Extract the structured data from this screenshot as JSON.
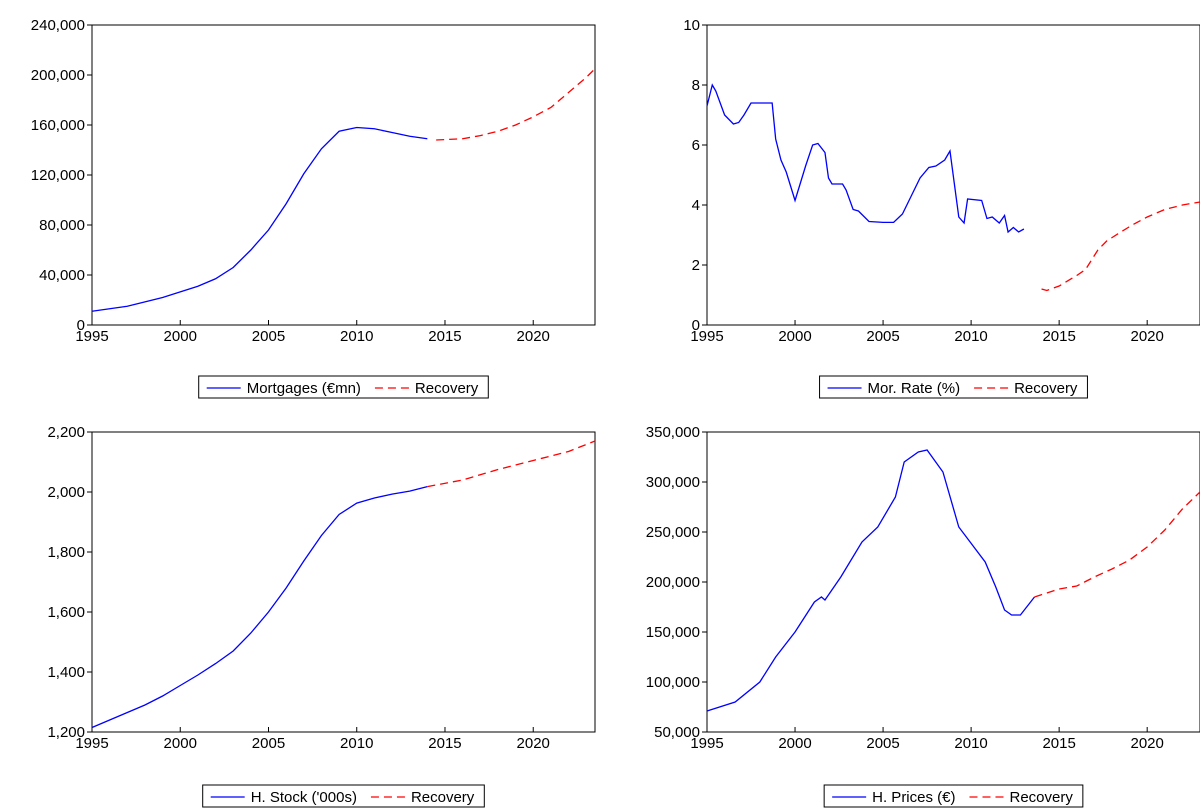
{
  "chart_data": [
    {
      "type": "line",
      "xlim": [
        1995,
        2023.5
      ],
      "xticks": [
        1995,
        2000,
        2005,
        2010,
        2015,
        2020
      ],
      "ylim": [
        0,
        240000
      ],
      "yticks": [
        0,
        {
          "value": 40000,
          "label": "40,000"
        },
        {
          "value": 80000,
          "label": "80,000"
        },
        {
          "value": 120000,
          "label": "120,000"
        },
        {
          "value": 160000,
          "label": "160,000"
        },
        {
          "value": 200000,
          "label": "200,000"
        },
        {
          "value": 240000,
          "label": "240,000"
        }
      ],
      "legend": "bottom",
      "series": [
        {
          "name": "Mortgages (€mn)",
          "color": "#0000ff",
          "style": "solid",
          "x": [
            1995,
            1996,
            1997,
            1998,
            1999,
            2000,
            2001,
            2002,
            2003,
            2004,
            2005,
            2006,
            2007,
            2008,
            2009,
            2010,
            2011,
            2012,
            2013,
            2014
          ],
          "values": [
            11000,
            13000,
            15000,
            18500,
            22000,
            26500,
            31000,
            37000,
            46000,
            60000,
            76000,
            97000,
            121000,
            141000,
            155000,
            158000,
            157000,
            154000,
            151000,
            149000
          ]
        },
        {
          "name": "Recovery",
          "color": "#ff0000",
          "style": "dashed",
          "x": [
            2014.5,
            2016,
            2017,
            2018,
            2019,
            2020,
            2021,
            2022,
            2023,
            2023.5
          ],
          "values": [
            148000,
            149000,
            151500,
            155000,
            160000,
            166500,
            174000,
            186000,
            198000,
            205000
          ]
        }
      ]
    },
    {
      "type": "line",
      "xlim": [
        1995,
        2023
      ],
      "xticks": [
        1995,
        2000,
        2005,
        2010,
        2015,
        2020
      ],
      "ylim": [
        0,
        10
      ],
      "yticks": [
        0,
        2,
        4,
        6,
        8,
        10
      ],
      "legend": "bottom",
      "series": [
        {
          "name": "Mor. Rate (%)",
          "color": "#0000ff",
          "style": "solid",
          "x": [
            1995,
            1995.3,
            1995.5,
            1996,
            1996.5,
            1996.8,
            1997.1,
            1997.5,
            1998.7,
            1998.9,
            1999.2,
            1999.5,
            2000,
            2000.6,
            2001,
            2001.3,
            2001.7,
            2001.9,
            2002.1,
            2002.7,
            2002.9,
            2003.3,
            2003.6,
            2004.2,
            2005,
            2005.6,
            2006.1,
            2006.6,
            2007.1,
            2007.6,
            2008,
            2008.5,
            2008.8,
            2009.3,
            2009.6,
            2009.8,
            2010.6,
            2010.9,
            2011.2,
            2011.6,
            2011.9,
            2012.1,
            2012.4,
            2012.7,
            2013
          ],
          "values": [
            7.3,
            8.0,
            7.8,
            7.0,
            6.7,
            6.75,
            7.0,
            7.4,
            7.4,
            6.2,
            5.5,
            5.1,
            4.15,
            5.3,
            6.0,
            6.05,
            5.75,
            4.9,
            4.7,
            4.7,
            4.5,
            3.85,
            3.8,
            3.45,
            3.42,
            3.42,
            3.7,
            4.3,
            4.9,
            5.25,
            5.3,
            5.5,
            5.8,
            3.6,
            3.4,
            4.2,
            4.15,
            3.55,
            3.6,
            3.4,
            3.65,
            3.1,
            3.25,
            3.1,
            3.2
          ]
        },
        {
          "name": "Recovery",
          "color": "#ff0000",
          "style": "dashed",
          "x": [
            2014,
            2014.3,
            2015,
            2016,
            2016.5,
            2017.2,
            2017.7,
            2018.5,
            2019.2,
            2020,
            2021,
            2022,
            2023
          ],
          "values": [
            1.2,
            1.15,
            1.3,
            1.65,
            1.85,
            2.5,
            2.8,
            3.1,
            3.35,
            3.6,
            3.85,
            4.0,
            4.1
          ]
        }
      ]
    },
    {
      "type": "line",
      "xlim": [
        1995,
        2023.5
      ],
      "xticks": [
        1995,
        2000,
        2005,
        2010,
        2015,
        2020
      ],
      "ylim": [
        1200,
        2200
      ],
      "yticks": [
        {
          "value": 1200,
          "label": "1,200"
        },
        {
          "value": 1400,
          "label": "1,400"
        },
        {
          "value": 1600,
          "label": "1,600"
        },
        {
          "value": 1800,
          "label": "1,800"
        },
        {
          "value": 2000,
          "label": "2,000"
        },
        {
          "value": 2200,
          "label": "2,200"
        }
      ],
      "legend": "bottom",
      "series": [
        {
          "name": "H. Stock ('000s)",
          "color": "#0000ff",
          "style": "solid",
          "x": [
            1995,
            1996,
            1997,
            1998,
            1999,
            2000,
            2001,
            2002,
            2003,
            2004,
            2005,
            2006,
            2007,
            2008,
            2009,
            2010,
            2011,
            2012,
            2013,
            2014
          ],
          "values": [
            1215,
            1240,
            1265,
            1290,
            1320,
            1355,
            1390,
            1428,
            1470,
            1530,
            1600,
            1680,
            1770,
            1855,
            1925,
            1963,
            1980,
            1993,
            2003,
            2018
          ]
        },
        {
          "name": "Recovery",
          "color": "#ff0000",
          "style": "dashed",
          "x": [
            2014,
            2016,
            2018,
            2020,
            2022,
            2023.5
          ],
          "values": [
            2018,
            2040,
            2075,
            2105,
            2135,
            2170
          ]
        }
      ]
    },
    {
      "type": "line",
      "xlim": [
        1995,
        2023
      ],
      "xticks": [
        1995,
        2000,
        2005,
        2010,
        2015,
        2020
      ],
      "ylim": [
        50000,
        350000
      ],
      "yticks": [
        {
          "value": 50000,
          "label": "50,000"
        },
        {
          "value": 100000,
          "label": "100,000"
        },
        {
          "value": 150000,
          "label": "150,000"
        },
        {
          "value": 200000,
          "label": "200,000"
        },
        {
          "value": 250000,
          "label": "250,000"
        },
        {
          "value": 300000,
          "label": "300,000"
        },
        {
          "value": 350000,
          "label": "350,000"
        }
      ],
      "legend": "bottom",
      "series": [
        {
          "name": "H. Prices (€)",
          "color": "#0000ff",
          "style": "solid",
          "x": [
            1995,
            1996.6,
            1998,
            1998.9,
            2000,
            2001.1,
            2001.5,
            2001.7,
            2002.6,
            2003.8,
            2004.7,
            2005.7,
            2006.2,
            2007,
            2007.5,
            2008.4,
            2009.3,
            2010.8,
            2011.4,
            2011.9,
            2012.3,
            2012.8,
            2013.6
          ],
          "values": [
            71000,
            80000,
            100000,
            125000,
            150000,
            180000,
            185000,
            182000,
            205000,
            240000,
            255000,
            285000,
            320000,
            330000,
            332000,
            310000,
            255000,
            220000,
            195000,
            172000,
            167000,
            167000,
            185000
          ]
        },
        {
          "name": "Recovery",
          "color": "#ff0000",
          "style": "dashed",
          "x": [
            2013.6,
            2015,
            2016,
            2017,
            2018,
            2019,
            2020,
            2021,
            2022,
            2023
          ],
          "values": [
            185000,
            193000,
            196000,
            205000,
            213000,
            222000,
            235000,
            252000,
            273000,
            290000
          ]
        }
      ]
    }
  ]
}
